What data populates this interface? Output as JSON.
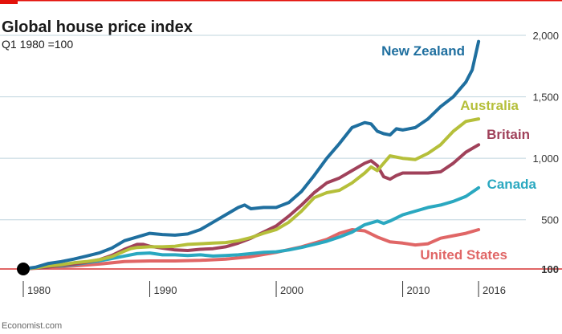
{
  "chart_data": {
    "type": "line",
    "title": "Global house price index",
    "subtitle": "Q1 1980 =100",
    "source": "Economist.com",
    "y_ticks": [
      {
        "value": 2000,
        "label": "2,000"
      },
      {
        "value": 1500,
        "label": "1,500"
      },
      {
        "value": 1000,
        "label": "1,000"
      },
      {
        "value": 500,
        "label": "500"
      },
      {
        "value": 100,
        "label": "100"
      }
    ],
    "x_ticks": [
      {
        "value": 1980,
        "label": "1980"
      },
      {
        "value": 1990,
        "label": "1990"
      },
      {
        "value": 2000,
        "label": "2000"
      },
      {
        "value": 2010,
        "label": "2010"
      },
      {
        "value": 2016,
        "label": "2016"
      }
    ],
    "xlim": [
      1980,
      2016.25
    ],
    "ylim": [
      100,
      2000
    ],
    "colors": {
      "accent": "#e3120b",
      "baseline": "#e06666",
      "grid": "#bfd4de",
      "axis_text": "#333333",
      "title": "#1a1a1a"
    },
    "start_point": {
      "x": 1980,
      "y": 100,
      "color": "#000000"
    },
    "series": [
      {
        "name": "New Zealand",
        "color": "#1f6f9f",
        "x": [
          1980,
          1981,
          1982,
          1983,
          1984,
          1985,
          1986,
          1987,
          1988,
          1989,
          1990,
          1991,
          1992,
          1993,
          1994,
          1995,
          1996,
          1997,
          1997.5,
          1998,
          1999,
          2000,
          2001,
          2002,
          2003,
          2004,
          2005,
          2006,
          2007,
          2007.5,
          2008,
          2008.5,
          2009,
          2009.5,
          2010,
          2011,
          2012,
          2013,
          2014,
          2015,
          2015.5,
          2016
        ],
        "y": [
          100,
          115,
          145,
          160,
          180,
          205,
          230,
          270,
          330,
          360,
          390,
          380,
          375,
          385,
          420,
          480,
          540,
          600,
          620,
          590,
          600,
          600,
          640,
          730,
          860,
          1000,
          1120,
          1250,
          1290,
          1280,
          1220,
          1200,
          1190,
          1240,
          1230,
          1250,
          1320,
          1420,
          1500,
          1620,
          1720,
          1950
        ]
      },
      {
        "name": "Australia",
        "color": "#b5bf3a",
        "x": [
          1980,
          1981,
          1982,
          1983,
          1984,
          1985,
          1986,
          1987,
          1988,
          1988.5,
          1989,
          1990,
          1991,
          1992,
          1993,
          1994,
          1995,
          1996,
          1997,
          1998,
          1999,
          2000,
          2001,
          2002,
          2003,
          2004,
          2005,
          2006,
          2007,
          2007.5,
          2008,
          2009,
          2010,
          2011,
          2012,
          2013,
          2014,
          2015,
          2016
        ],
        "y": [
          100,
          110,
          125,
          135,
          150,
          160,
          175,
          200,
          245,
          265,
          275,
          280,
          280,
          285,
          300,
          305,
          310,
          315,
          330,
          355,
          390,
          420,
          480,
          570,
          680,
          720,
          740,
          800,
          880,
          930,
          900,
          1020,
          1000,
          990,
          1040,
          1110,
          1220,
          1300,
          1320
        ]
      },
      {
        "name": "Britain",
        "color": "#a0415a",
        "x": [
          1980,
          1981,
          1982,
          1983,
          1984,
          1985,
          1986,
          1987,
          1988,
          1989,
          1989.5,
          1990,
          1991,
          1992,
          1993,
          1994,
          1995,
          1996,
          1997,
          1998,
          1999,
          2000,
          2001,
          2002,
          2003,
          2004,
          2005,
          2006,
          2007,
          2007.5,
          2008,
          2008.5,
          2009,
          2009.5,
          2010,
          2011,
          2012,
          2013,
          2014,
          2015,
          2016
        ],
        "y": [
          100,
          108,
          115,
          130,
          140,
          155,
          175,
          210,
          260,
          300,
          300,
          285,
          270,
          255,
          250,
          260,
          265,
          280,
          310,
          350,
          400,
          450,
          530,
          620,
          720,
          800,
          840,
          900,
          960,
          980,
          940,
          850,
          830,
          860,
          880,
          880,
          880,
          890,
          960,
          1050,
          1110
        ]
      },
      {
        "name": "Canada",
        "color": "#2aa8c0",
        "x": [
          1980,
          1981,
          1982,
          1983,
          1984,
          1985,
          1986,
          1987,
          1988,
          1989,
          1990,
          1991,
          1992,
          1993,
          1994,
          1995,
          1996,
          1997,
          1998,
          1999,
          2000,
          2001,
          2002,
          2003,
          2004,
          2005,
          2006,
          2007,
          2008,
          2008.5,
          2009,
          2010,
          2011,
          2012,
          2013,
          2014,
          2015,
          2016
        ],
        "y": [
          100,
          110,
          120,
          125,
          135,
          150,
          165,
          185,
          205,
          225,
          230,
          215,
          215,
          210,
          215,
          205,
          210,
          215,
          225,
          235,
          240,
          255,
          275,
          300,
          325,
          360,
          400,
          460,
          490,
          470,
          490,
          540,
          570,
          600,
          620,
          650,
          690,
          760
        ]
      },
      {
        "name": "United States",
        "color": "#e06666",
        "x": [
          1980,
          1982,
          1984,
          1986,
          1988,
          1990,
          1992,
          1994,
          1996,
          1998,
          2000,
          2002,
          2004,
          2005,
          2006,
          2007,
          2008,
          2009,
          2010,
          2011,
          2012,
          2013,
          2014,
          2015,
          2016
        ],
        "y": [
          100,
          112,
          125,
          140,
          160,
          165,
          165,
          170,
          180,
          200,
          235,
          280,
          340,
          390,
          420,
          410,
          360,
          320,
          310,
          295,
          305,
          350,
          370,
          390,
          420
        ]
      }
    ]
  }
}
